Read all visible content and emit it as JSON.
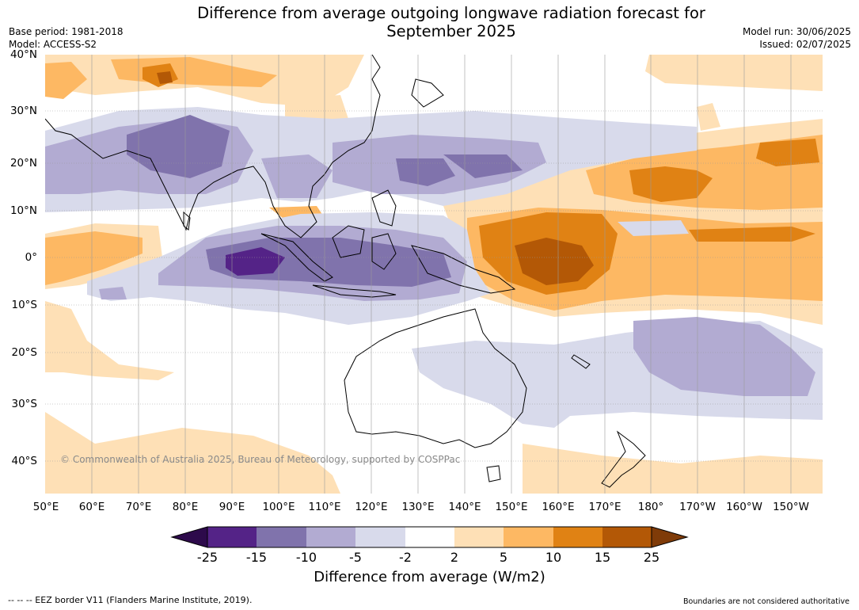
{
  "header": {
    "title_line1": "Difference from average outgoing longwave radiation forecast for",
    "title_line2": "September 2025",
    "base_period": "Base period: 1981-2018",
    "model": "Model: ACCESS-S2",
    "model_run": "Model run: 30/06/2025",
    "issued": "Issued: 02/07/2025"
  },
  "map": {
    "lat_labels": [
      "40°N",
      "30°N",
      "20°N",
      "10°N",
      "0°",
      "10°S",
      "20°S",
      "30°S",
      "40°S"
    ],
    "lon_labels": [
      "50°E",
      "60°E",
      "70°E",
      "80°E",
      "90°E",
      "100°E",
      "110°E",
      "120°E",
      "130°E",
      "140°E",
      "150°E",
      "160°E",
      "170°E",
      "180°",
      "170°W",
      "160°W",
      "150°W"
    ],
    "copyright": "© Commonwealth of Australia 2025, Bureau of Meteorology, supported by COSPPac"
  },
  "colorbar": {
    "ticks": [
      "-25",
      "-15",
      "-10",
      "-5",
      "-2",
      "2",
      "5",
      "10",
      "15",
      "25"
    ],
    "colors": [
      "#2d0a4b",
      "#542387",
      "#8073ac",
      "#b2abd2",
      "#d8daeb",
      "#ffffff",
      "#fee0b6",
      "#fdb863",
      "#e08214",
      "#b35806",
      "#7f3b08"
    ],
    "label": "Difference from average (W/m2)"
  },
  "footer": {
    "eez": "--  --  -- EEZ border V11 (Flanders Marine Institute, 2019).",
    "boundaries": "Boundaries are not considered authoritative"
  }
}
